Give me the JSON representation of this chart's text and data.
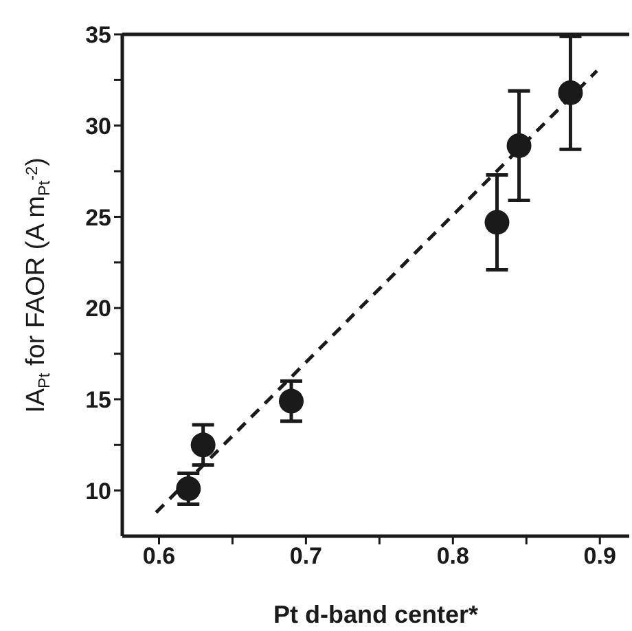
{
  "chart_data": {
    "type": "scatter",
    "xlabel": "Pt d-band center*",
    "ylabel": "IA$_{Pt}$ for FAOR (A m$_{Pt}$$^{-2}$)",
    "xlim": [
      0.575,
      0.92
    ],
    "ylim": [
      7.5,
      35
    ],
    "xticks": [
      0.6,
      {
        "value": 0.65,
        "label": null
      },
      0.7,
      {
        "value": 0.75,
        "label": null
      },
      0.8,
      {
        "value": 0.85,
        "label": null
      },
      0.9
    ],
    "yticks": [
      10,
      {
        "value": 12.5,
        "label": null
      },
      15,
      {
        "value": 17.5,
        "label": null
      },
      20,
      {
        "value": 22.5,
        "label": null
      },
      25,
      {
        "value": 27.5,
        "label": null
      },
      30,
      {
        "value": 32.5,
        "label": null
      },
      35
    ],
    "grid": false,
    "legend": false,
    "series": [
      {
        "color": "#1a1a1a",
        "marker": "circle",
        "x": [
          0.62,
          0.63,
          0.69,
          0.83,
          0.845,
          0.88
        ],
        "values": [
          10.1,
          12.5,
          14.9,
          24.7,
          28.9,
          31.8
        ],
        "errors": [
          0.85,
          1.1,
          1.1,
          2.6,
          3.0,
          3.1
        ]
      },
      {
        "type": "line",
        "color": "#1a1a1a",
        "line_style": "dashed",
        "marker": "none",
        "x": [
          0.598,
          0.898
        ],
        "values": [
          8.8,
          33.0
        ]
      }
    ]
  }
}
